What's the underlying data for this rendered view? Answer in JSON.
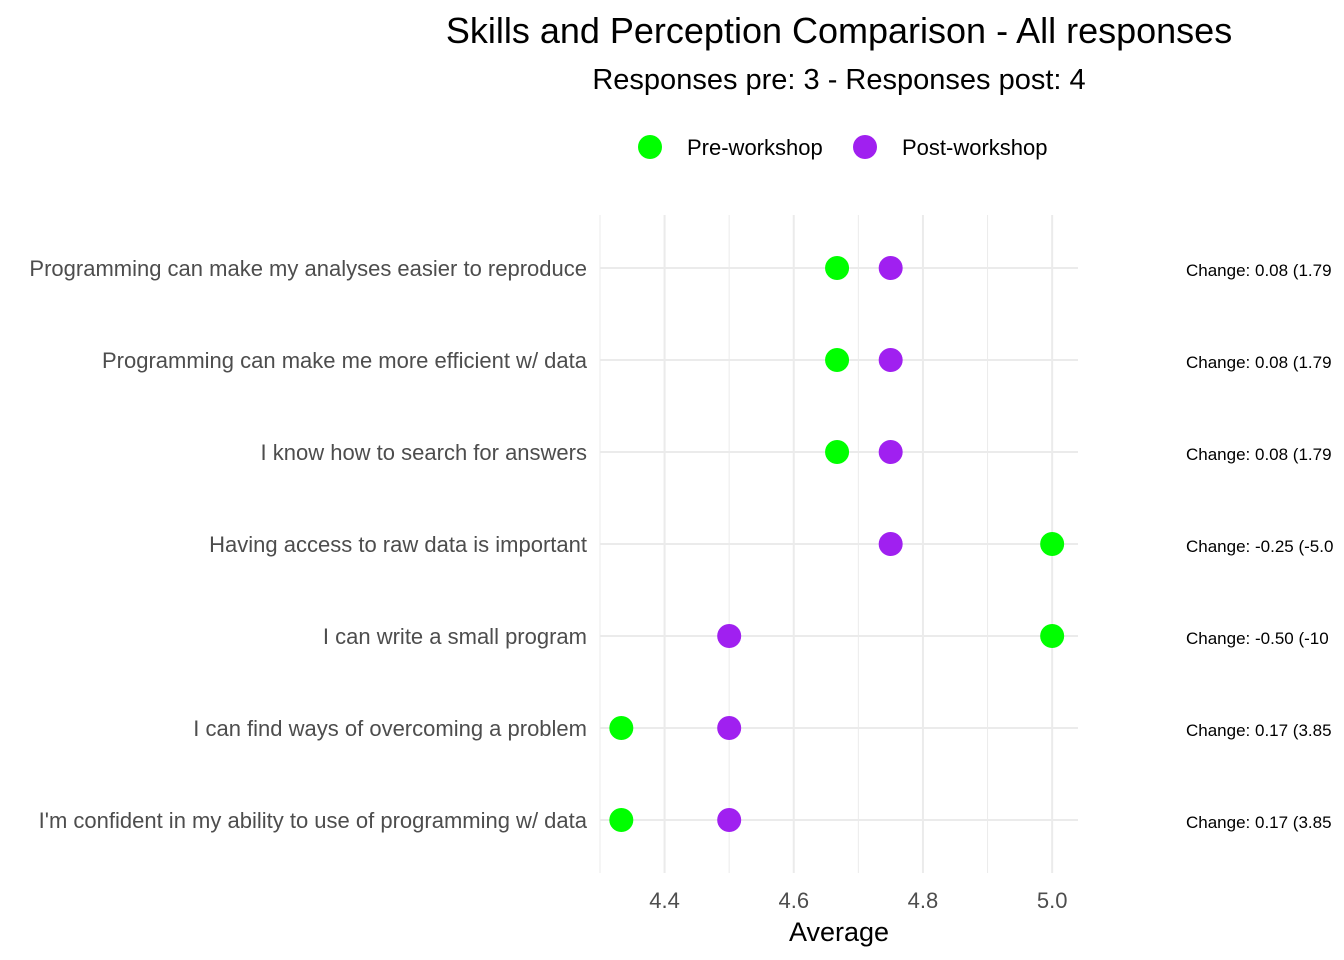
{
  "chart_data": {
    "type": "scatter",
    "title": "Skills and Perception Comparison - All responses",
    "subtitle": "Responses pre: 3 - Responses post: 4",
    "xlabel": "Average",
    "ylabel": "",
    "xlim": [
      4.3,
      5.04
    ],
    "x_ticks": [
      "4.4",
      "4.6",
      "4.8",
      "5.0"
    ],
    "grid": true,
    "legend_position": "top",
    "categories": [
      "Programming can make my analyses easier to reproduce",
      "Programming can make me more efficient w/ data",
      "I know how to search for answers",
      "Having access to raw data is important",
      "I can write a small program",
      "I can find ways of overcoming a problem",
      "I'm confident in my ability to use of programming w/ data"
    ],
    "series": [
      {
        "name": "Pre-workshop",
        "color": "#00ff00",
        "values": [
          4.667,
          4.667,
          4.667,
          5.0,
          5.0,
          4.333,
          4.333
        ]
      },
      {
        "name": "Post-workshop",
        "color": "#a020f0",
        "values": [
          4.75,
          4.75,
          4.75,
          4.75,
          4.5,
          4.5,
          4.5
        ]
      }
    ],
    "annotations": [
      "Change: 0.08 (1.79",
      "Change: 0.08 (1.79",
      "Change: 0.08 (1.79",
      "Change: -0.25 (-5.0",
      "Change: -0.50 (-10",
      "Change: 0.17 (3.85",
      "Change: 0.17 (3.85"
    ]
  }
}
